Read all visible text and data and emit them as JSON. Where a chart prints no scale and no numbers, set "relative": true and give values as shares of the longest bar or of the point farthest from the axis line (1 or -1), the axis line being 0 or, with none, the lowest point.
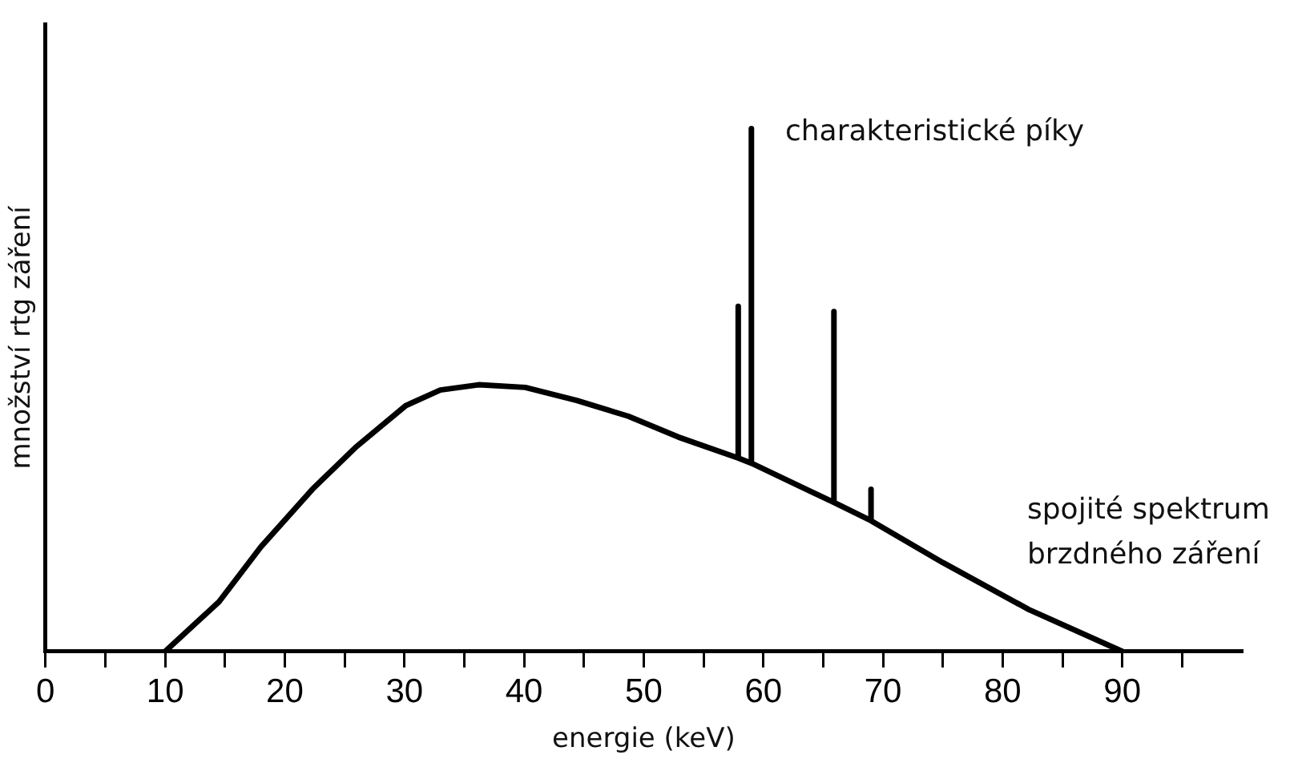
{
  "chart_data": {
    "type": "line",
    "relative": true,
    "xlabel": "energie (keV)",
    "ylabel": "množství rtg záření",
    "xlim": [
      0,
      100
    ],
    "xticks": [
      0,
      {
        "value": 5,
        "label": null
      },
      10,
      {
        "value": 15,
        "label": null
      },
      20,
      {
        "value": 25,
        "label": null
      },
      30,
      {
        "value": 35,
        "label": null
      },
      40,
      {
        "value": 45,
        "label": null
      },
      50,
      {
        "value": 55,
        "label": null
      },
      60,
      {
        "value": 65,
        "label": null
      },
      70,
      {
        "value": 75,
        "label": null
      },
      80,
      {
        "value": 85,
        "label": null
      },
      90,
      {
        "value": 95,
        "label": null
      }
    ],
    "series": [
      {
        "color": "#000000",
        "x": [
          10,
          14.5,
          18,
          22.3,
          25.9,
          30.1,
          33,
          36.2,
          40.1,
          44.4,
          48.7,
          52.9,
          57.9,
          57.9,
          57.9,
          59,
          59,
          59,
          65.9,
          65.9,
          65.9,
          69,
          69,
          69,
          75,
          82.2,
          90
        ],
        "values": [
          0,
          0.095,
          0.2,
          0.31,
          0.39,
          0.47,
          0.5,
          0.51,
          0.505,
          0.48,
          0.45,
          0.41,
          0.37,
          0.66,
          0.37,
          0.36,
          1,
          0.36,
          0.285,
          0.65,
          0.285,
          0.25,
          0.31,
          0.25,
          0.17,
          0.08,
          0
        ]
      }
    ],
    "annotations": [
      "charakteristické píky",
      "spojité spektrum\nbrzdného záření"
    ],
    "marker": "none",
    "line_style": "solid",
    "grid": false,
    "legend": false
  }
}
